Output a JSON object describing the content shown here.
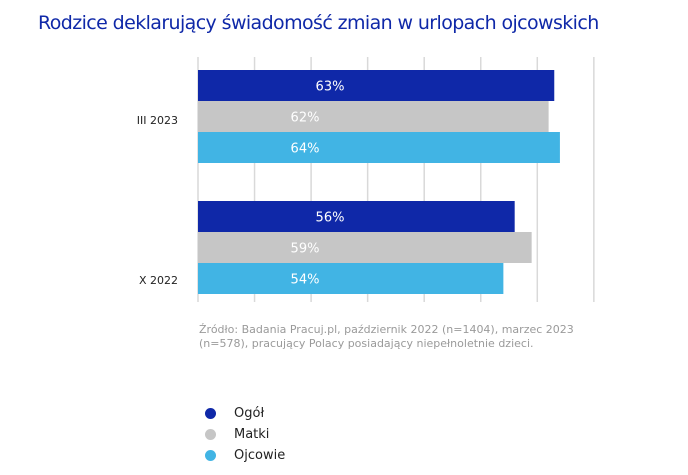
{
  "chart_data": {
    "type": "bar",
    "orientation": "horizontal",
    "title": "Rodzice deklarujący świadomość zmian w urlopach ojcowskich",
    "categories": [
      "III 2023",
      "X 2022"
    ],
    "series": [
      {
        "name": "Ogół",
        "color": "#0f28a8",
        "values": [
          63,
          56
        ]
      },
      {
        "name": "Matki",
        "color": "#c6c6c6",
        "values": [
          62,
          59
        ]
      },
      {
        "name": "Ojcowie",
        "color": "#41b4e4",
        "values": [
          64,
          54
        ]
      }
    ],
    "data_labels": [
      [
        "63%",
        "62%",
        "64%"
      ],
      [
        "56%",
        "59%",
        "54%"
      ]
    ],
    "xlim": [
      0,
      70
    ],
    "grid": true,
    "grid_step": 10,
    "xlabel": "",
    "ylabel": "",
    "legend_position": "bottom-left",
    "source": "Źródło: Badania Pracuj.pl, październik 2022 (n=1404), marzec 2023 (n=578), pracujący Polacy posiadający niepełnoletnie dzieci."
  }
}
